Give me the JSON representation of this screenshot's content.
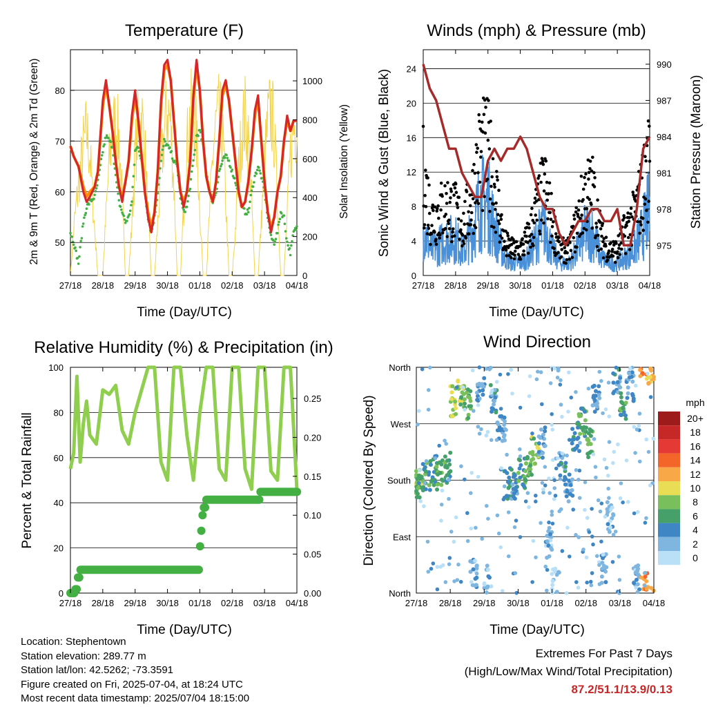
{
  "figure": {
    "location": "Location: Stephentown",
    "elevation": "Station elevation: 289.77 m",
    "latlon": "Station lat/lon: 42.5262; -73.3591",
    "created": "Figure created on Fri, 2025-07-04, at 18:24 UTC",
    "recent": "Most recent data timestamp: 2025/07/04 18:15:00",
    "extremes_title": "Extremes For Past 7 Days",
    "extremes_sub": "(High/Low/Max Wind/Total Precipitation)",
    "extremes_values": "87.2/51.1/13.9/0.13"
  },
  "chart_data": [
    {
      "type": "line",
      "title": "Temperature (F)",
      "xlabel": "Time (Day/UTC)",
      "ylabel": "2m & 9m T (Red, Orange) & 2m Td (Green)",
      "y2label": "Solar Insolation (Yellow)",
      "x_ticks": [
        "27/18",
        "28/18",
        "29/18",
        "30/18",
        "01/18",
        "02/18",
        "03/18",
        "04/18"
      ],
      "ylim": [
        43.5,
        88
      ],
      "y_ticks": [
        50,
        60,
        70,
        80
      ],
      "y2lim": [
        0,
        1160
      ],
      "y2_ticks": [
        0,
        200,
        400,
        600,
        800,
        1000
      ],
      "grid": true,
      "x_days": [
        0,
        0.1,
        0.25,
        0.4,
        0.5,
        0.6,
        0.75,
        0.85,
        1.0,
        1.1,
        1.2,
        1.3,
        1.4,
        1.5,
        1.6,
        1.7,
        1.8,
        1.9,
        2.0,
        2.1,
        2.2,
        2.3,
        2.4,
        2.5,
        2.6,
        2.7,
        2.8,
        2.9,
        3.0,
        3.1,
        3.2,
        3.3,
        3.4,
        3.5,
        3.6,
        3.7,
        3.8,
        3.9,
        4.0,
        4.1,
        4.2,
        4.3,
        4.4,
        4.5,
        4.6,
        4.7,
        4.8,
        4.9,
        5.0,
        5.1,
        5.2,
        5.3,
        5.4,
        5.5,
        5.6,
        5.7,
        5.8,
        5.9,
        6.0,
        6.1,
        6.2,
        6.3,
        6.4,
        6.5,
        6.6,
        6.7,
        6.8,
        6.9,
        7.0
      ],
      "series": [
        {
          "name": "2m T",
          "color": "#d62728",
          "values": [
            69,
            67,
            65,
            60,
            58,
            59,
            61,
            64,
            78,
            82,
            77,
            72,
            66,
            61,
            58,
            62,
            66,
            75,
            80,
            74,
            67,
            60,
            55,
            52,
            56,
            64,
            78,
            85,
            86,
            82,
            74,
            66,
            60,
            57,
            60,
            66,
            79,
            86,
            80,
            70,
            63,
            60,
            58,
            62,
            70,
            80,
            82,
            78,
            72,
            66,
            60,
            57,
            58,
            62,
            68,
            76,
            79,
            70,
            62,
            56,
            52,
            55,
            60,
            63,
            70,
            75,
            72,
            74,
            74
          ]
        },
        {
          "name": "9m T",
          "color": "#ff8c00",
          "values": [
            69,
            67,
            65,
            61,
            59,
            60,
            61,
            64,
            77,
            81,
            77,
            72,
            66,
            61,
            59,
            62,
            66,
            74,
            79,
            74,
            67,
            60,
            56,
            53,
            56,
            64,
            77,
            84,
            85,
            82,
            74,
            66,
            60,
            58,
            60,
            66,
            78,
            85,
            80,
            70,
            63,
            60,
            58,
            62,
            70,
            79,
            81,
            78,
            72,
            66,
            60,
            57,
            58,
            62,
            68,
            75,
            78,
            70,
            62,
            56,
            53,
            55,
            60,
            63,
            70,
            74,
            72,
            74,
            74
          ]
        },
        {
          "name": "2m Td",
          "color": "#44b044",
          "values": [
            52,
            50,
            46,
            54,
            57,
            58,
            59,
            62,
            68,
            71,
            70,
            69,
            63,
            58,
            56,
            54,
            55,
            58,
            68,
            69,
            66,
            60,
            55,
            52,
            55,
            60,
            66,
            70,
            69,
            68,
            66,
            65,
            59,
            56,
            57,
            61,
            66,
            71,
            72,
            69,
            64,
            60,
            58,
            60,
            64,
            66,
            67,
            66,
            64,
            62,
            60,
            57,
            56,
            56,
            60,
            63,
            65,
            63,
            60,
            55,
            51,
            50,
            52,
            56,
            55,
            50,
            48,
            52,
            53
          ]
        },
        {
          "name": "Solar",
          "axis": "y2",
          "color": "#f2d44c",
          "values": [
            0,
            300,
            600,
            850,
            950,
            800,
            300,
            0,
            0,
            400,
            750,
            950,
            1000,
            900,
            500,
            0,
            0,
            350,
            800,
            1000,
            1050,
            850,
            400,
            0,
            0,
            350,
            700,
            950,
            1100,
            1000,
            600,
            0,
            0,
            450,
            850,
            1050,
            1100,
            900,
            450,
            0,
            0,
            400,
            800,
            1000,
            1050,
            950,
            500,
            0,
            0,
            300,
            700,
            950,
            1050,
            900,
            500,
            0,
            0,
            350,
            750,
            1000,
            1100,
            950,
            500,
            0,
            0,
            400,
            800,
            1000,
            1000
          ]
        }
      ]
    },
    {
      "type": "scatter",
      "title": "Winds (mph) & Pressure (mb)",
      "xlabel": "Time (Day/UTC)",
      "ylabel": "Sonic Wind & Gust (Blue, Black)",
      "y2label": "Station Pressure (Maroon)",
      "x_ticks": [
        "27/18",
        "28/18",
        "29/18",
        "30/18",
        "01/18",
        "02/18",
        "03/18",
        "04/18"
      ],
      "ylim": [
        0,
        26.2
      ],
      "y_ticks": [
        0,
        4,
        8,
        12,
        16,
        20,
        24
      ],
      "y2lim": [
        972.5,
        991.2
      ],
      "y2_ticks": [
        975,
        978,
        981,
        984,
        987,
        990
      ],
      "grid": true,
      "wind_days": [
        0,
        0.25,
        0.5,
        0.75,
        1.0,
        1.25,
        1.5,
        1.75,
        2.0,
        2.25,
        2.5,
        2.75,
        3.0,
        3.25,
        3.5,
        3.75,
        4.0,
        4.25,
        4.5,
        4.75,
        5.0,
        5.25,
        5.5,
        5.75,
        6.0,
        6.25,
        6.5,
        6.75,
        7.0
      ],
      "series": [
        {
          "name": "Wind",
          "color": "#4a90d9",
          "values": [
            8,
            4,
            5,
            6,
            6,
            4,
            7,
            12,
            12,
            7,
            3,
            2,
            2,
            3,
            6,
            8,
            4,
            2,
            2,
            4,
            7,
            7,
            3,
            2,
            2,
            3,
            4,
            7,
            11
          ]
        },
        {
          "name": "Gust",
          "color": "#000000",
          "values": [
            16,
            9,
            10,
            11,
            10,
            8,
            12,
            19,
            19,
            13,
            5,
            4,
            4,
            6,
            10,
            14,
            8,
            4,
            4,
            8,
            13,
            13,
            6,
            4,
            4,
            7,
            9,
            13,
            18
          ]
        },
        {
          "name": "Pressure",
          "axis": "y2",
          "color": "#a52a2a",
          "x": [
            0,
            0.2,
            0.4,
            0.6,
            0.8,
            1.0,
            1.2,
            1.4,
            1.6,
            1.8,
            2.0,
            2.2,
            2.4,
            2.6,
            2.8,
            3.0,
            3.2,
            3.4,
            3.6,
            3.8,
            4.0,
            4.2,
            4.4,
            4.6,
            4.8,
            5.0,
            5.2,
            5.4,
            5.6,
            5.8,
            6.0,
            6.2,
            6.4,
            6.6,
            6.8,
            7.0
          ],
          "values": [
            990,
            988,
            987,
            985,
            983,
            983,
            981,
            980,
            979,
            979,
            982,
            983,
            982,
            983,
            983,
            984,
            983,
            981,
            979,
            978,
            978,
            976,
            975,
            976,
            977,
            977,
            978,
            978,
            977,
            977,
            978,
            975,
            975,
            978,
            983,
            984
          ]
        }
      ]
    },
    {
      "type": "line",
      "title": "Relative Humidity (%) & Precipitation (in)",
      "xlabel": "Time (Day/UTC)",
      "ylabel": "Percent & Total Rainfall",
      "x_ticks": [
        "27/18",
        "28/18",
        "29/18",
        "30/18",
        "01/18",
        "02/18",
        "03/18",
        "04/18"
      ],
      "ylim": [
        0,
        100
      ],
      "y_ticks": [
        0,
        20,
        40,
        60,
        80,
        100
      ],
      "y2lim": [
        0,
        0.29
      ],
      "y2_ticks": [
        "0.00",
        "0.05",
        "0.10",
        "0.15",
        "0.20",
        "0.25"
      ],
      "grid": true,
      "series": [
        {
          "name": "RH",
          "color": "#8fce4e",
          "x": [
            0,
            0.1,
            0.2,
            0.3,
            0.4,
            0.5,
            0.6,
            0.8,
            1.0,
            1.2,
            1.4,
            1.6,
            1.8,
            2.0,
            2.2,
            2.4,
            2.6,
            2.8,
            3.0,
            3.2,
            3.4,
            3.6,
            3.8,
            4.0,
            4.2,
            4.4,
            4.6,
            4.8,
            5.0,
            5.2,
            5.4,
            5.6,
            5.8,
            6.0,
            6.2,
            6.4,
            6.6,
            6.8,
            7.0
          ],
          "values": [
            55,
            62,
            96,
            58,
            75,
            85,
            70,
            66,
            90,
            88,
            92,
            72,
            66,
            80,
            90,
            100,
            100,
            58,
            50,
            100,
            100,
            70,
            50,
            80,
            100,
            100,
            55,
            50,
            100,
            100,
            55,
            46,
            100,
            100,
            54,
            50,
            100,
            100,
            46
          ]
        },
        {
          "name": "Precipitation",
          "axis": "y2",
          "color": "#44b044",
          "x": [
            0,
            0.1,
            0.15,
            0.2,
            0.3,
            1.0,
            2.0,
            3.0,
            3.99,
            4.0,
            4.02,
            4.05,
            4.1,
            4.2,
            5.0,
            5.8,
            5.85,
            6.0,
            7.0
          ],
          "values": [
            0,
            0,
            0.005,
            0.02,
            0.03,
            0.03,
            0.03,
            0.03,
            0.03,
            0.06,
            0.08,
            0.1,
            0.11,
            0.12,
            0.12,
            0.12,
            0.13,
            0.13,
            0.13
          ]
        }
      ]
    },
    {
      "type": "scatter",
      "title": "Wind Direction",
      "xlabel": "Time (Day/UTC)",
      "ylabel": "Direction (Colored By Speed)",
      "x_ticks": [
        "27/18",
        "28/18",
        "29/18",
        "30/18",
        "01/18",
        "02/18",
        "03/18",
        "04/18"
      ],
      "y_ticks": [
        "North",
        "East",
        "South",
        "West",
        "North"
      ],
      "ylim": [
        0,
        360
      ],
      "legend_title": "mph",
      "legend_labels": [
        "20+",
        "18",
        "16",
        "14",
        "12",
        "10",
        "8",
        "6",
        "4",
        "2",
        "0"
      ],
      "legend_colors": [
        "#9e1b1b",
        "#c62828",
        "#e53935",
        "#f4652a",
        "#f9a847",
        "#e8dd55",
        "#79c05c",
        "#46a06a",
        "#3e86c4",
        "#7fb6e0",
        "#b9e0f7"
      ],
      "legend_placement": "right",
      "x_days": [
        0.05,
        0.1,
        0.3,
        0.5,
        0.7,
        0.9,
        1.1,
        1.3,
        1.5,
        1.7,
        1.9,
        2.1,
        2.3,
        2.5,
        2.7,
        2.9,
        3.1,
        3.3,
        3.5,
        3.7,
        3.9,
        4.1,
        4.3,
        4.5,
        4.7,
        4.9,
        5.1,
        5.3,
        5.5,
        5.7,
        5.9,
        6.1,
        6.3,
        6.5,
        6.7,
        6.9
      ],
      "directions": [
        175,
        170,
        185,
        195,
        190,
        200,
        305,
        320,
        300,
        30,
        330,
        20,
        310,
        260,
        175,
        170,
        190,
        200,
        230,
        240,
        80,
        20,
        200,
        170,
        250,
        270,
        240,
        310,
        40,
        120,
        340,
        300,
        330,
        30,
        10,
        350
      ],
      "speeds": [
        9,
        7,
        6,
        5,
        7,
        6,
        9,
        8,
        7,
        2,
        3,
        2,
        4,
        3,
        5,
        4,
        6,
        7,
        8,
        3,
        2,
        1,
        4,
        3,
        5,
        6,
        7,
        3,
        2,
        2,
        4,
        6,
        3,
        2,
        13,
        11
      ]
    }
  ]
}
